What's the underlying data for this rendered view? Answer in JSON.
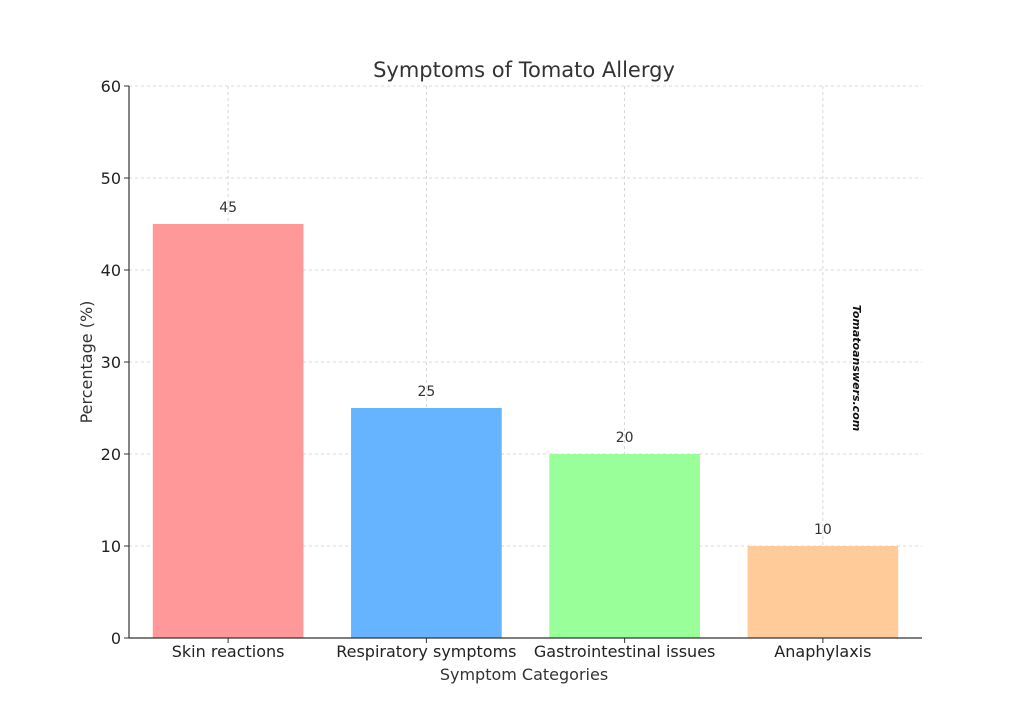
{
  "chart_data": {
    "type": "bar",
    "title": "Symptoms of Tomato Allergy",
    "xlabel": "Symptom Categories",
    "ylabel": "Percentage (%)",
    "categories": [
      "Skin reactions",
      "Respiratory symptoms",
      "Gastrointestinal issues",
      "Anaphylaxis"
    ],
    "values": [
      45,
      25,
      20,
      10
    ],
    "data_labels": [
      "45",
      "25",
      "20",
      "10"
    ],
    "colors": [
      "#ff9999",
      "#66b3ff",
      "#99ff99",
      "#ffcc99"
    ],
    "ylim": [
      0,
      60
    ],
    "yticks": [
      0,
      10,
      20,
      30,
      40,
      50,
      60
    ],
    "ytick_labels": [
      "0",
      "10",
      "20",
      "30",
      "40",
      "50",
      "60"
    ],
    "grid": true,
    "grid_style": "dashed",
    "watermark": "Tomatoanswers.com"
  }
}
